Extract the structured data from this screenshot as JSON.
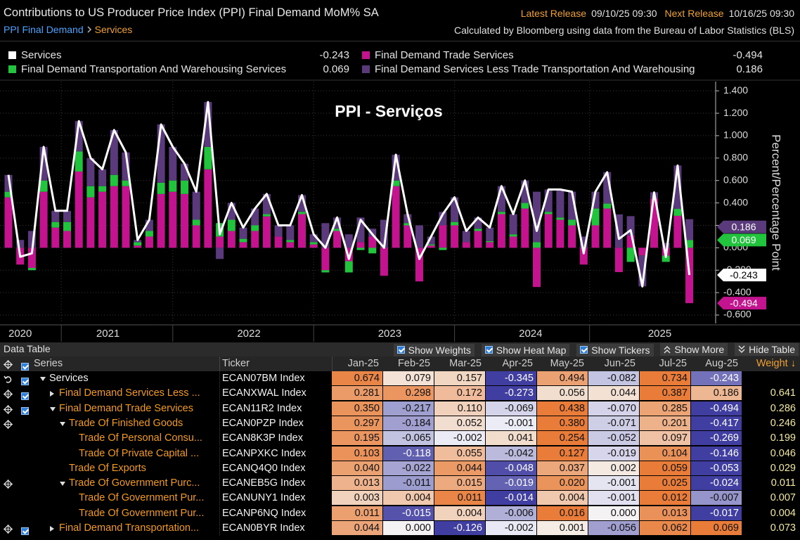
{
  "header": {
    "title": "Contributions to US Producer Price Index (PPI) Final Demand MoM% SA",
    "latest_release_label": "Latest Release",
    "latest_release": "09/10/25 09:30",
    "next_release_label": "Next Release",
    "next_release": "10/16/25 09:30",
    "breadcrumb": [
      "PPI Final Demand",
      "Services"
    ],
    "source": "Calculated by Bloomberg using data from the Bureau of Labor Statistics (BLS)"
  },
  "chart_data": {
    "type": "bar",
    "stacked": true,
    "title": "PPI - Serviços",
    "y_label": "Percent/Percentage Point",
    "grid": true,
    "ylim": [
      -0.675,
      1.47
    ],
    "yticks": [
      {
        "value": -0.6,
        "label": "-0.600"
      },
      {
        "value": -0.4,
        "label": "-0.400"
      },
      {
        "value": -0.2,
        "label": "-0.200"
      },
      {
        "value": 0,
        "label": "0.000"
      },
      {
        "value": 0.2,
        "label": "0.200"
      },
      {
        "value": 0.4,
        "label": "0.400"
      },
      {
        "value": 0.6,
        "label": "0.600"
      },
      {
        "value": 0.8,
        "label": "0.800"
      },
      {
        "value": 1,
        "label": "1.000"
      },
      {
        "value": 1.2,
        "label": "1.200"
      },
      {
        "value": 1.4,
        "label": "1.400"
      }
    ],
    "categories": [
      null,
      "2020",
      null,
      null,
      null,
      null,
      null,
      null,
      "2021",
      null,
      null,
      null,
      null,
      null,
      null,
      null,
      null,
      null,
      null,
      null,
      "2022",
      null,
      null,
      null,
      null,
      null,
      null,
      null,
      null,
      null,
      null,
      null,
      "2023",
      null,
      null,
      null,
      null,
      null,
      null,
      null,
      null,
      null,
      null,
      null,
      "2024",
      null,
      null,
      null,
      null,
      null,
      null,
      null,
      null,
      null,
      null,
      "2025",
      null,
      null,
      null
    ],
    "series": [
      {
        "name": "Services",
        "type": "line",
        "color": "#ffffff",
        "values": [
          0.65,
          -0.08,
          -0.05,
          0.9,
          0.33,
          0.33,
          1.13,
          0.8,
          0.7,
          1.05,
          0.85,
          0.07,
          0.25,
          1.1,
          0.9,
          0.75,
          0.5,
          1.3,
          0.12,
          0.4,
          0.18,
          0.35,
          0.48,
          0.2,
          0.2,
          0.47,
          0.12,
          0,
          0.27,
          -0.1,
          0.25,
          0.12,
          0,
          0.83,
          0.3,
          -0.1,
          0.1,
          0.3,
          0.45,
          0.15,
          0.27,
          0.18,
          0.55,
          0.3,
          0.6,
          0.15,
          0.52,
          0.52,
          0.5,
          -0.05,
          0.5,
          0.674,
          0.079,
          0.157,
          -0.345,
          0.494,
          -0.082,
          0.734,
          -0.243
        ]
      },
      {
        "name": "Final Demand Trade Services",
        "type": "bar",
        "color": "#c4138f",
        "values": [
          0.45,
          -0.15,
          -0.18,
          0.5,
          0.18,
          0.15,
          0.68,
          0.45,
          0.5,
          0.55,
          0.55,
          0.02,
          0.1,
          0.48,
          0.5,
          0.48,
          0.2,
          0.7,
          0.1,
          0.15,
          0.05,
          0.15,
          0.28,
          0.1,
          0.05,
          0.3,
          0.03,
          -0.2,
          0.15,
          -0.12,
          0.05,
          0.1,
          -0.25,
          0.55,
          0.2,
          -0.3,
          0.02,
          0.2,
          0.2,
          0.05,
          0.15,
          0.05,
          0.3,
          0.1,
          0.35,
          -0.35,
          0.3,
          0.25,
          0.2,
          -0.15,
          0.2,
          0.35,
          -0.217,
          0.11,
          -0.069,
          0.438,
          -0.07,
          0.285,
          -0.494
        ]
      },
      {
        "name": "Final Demand Transportation And Warehousing Services",
        "type": "bar",
        "color": "#22c43e",
        "values": [
          0.05,
          0,
          -0.02,
          0.1,
          0.05,
          0.08,
          0.18,
          0.1,
          0.05,
          0.1,
          0.05,
          0.03,
          0.05,
          0.1,
          0.1,
          0.12,
          0.05,
          0.2,
          0.12,
          0.1,
          0.03,
          0.05,
          0.02,
          0,
          0.02,
          0.02,
          0.02,
          -0.02,
          0.02,
          -0.1,
          -0.02,
          -0.05,
          0,
          0.05,
          0.02,
          0,
          0.01,
          -0.02,
          0.03,
          0,
          0.02,
          0.01,
          0.02,
          0.02,
          0.05,
          0.05,
          0.02,
          0.02,
          0.05,
          0,
          0.15,
          0.044,
          0,
          -0.126,
          -0.002,
          0.001,
          -0.056,
          0.062,
          0.069
        ]
      },
      {
        "name": "Final Demand Services Less Trade Transportation And Warehousing",
        "type": "bar",
        "color": "#5b3a7c",
        "values": [
          0.15,
          0.07,
          0.15,
          0.3,
          0.1,
          0.1,
          0.27,
          0.25,
          0.15,
          0.4,
          0.25,
          0.02,
          0.1,
          0.52,
          0.3,
          0.15,
          0.25,
          0.4,
          -0.1,
          0.15,
          0.1,
          0.15,
          0.18,
          0.1,
          0.13,
          0.15,
          0.07,
          0.22,
          0.1,
          0.12,
          0.22,
          0.07,
          0.25,
          0.23,
          0.08,
          0.2,
          0.07,
          0.12,
          0.22,
          0.1,
          0.1,
          0.12,
          0.23,
          0.18,
          0.2,
          0.45,
          0.2,
          0.25,
          0.25,
          0.1,
          0.15,
          0.281,
          0.298,
          0.172,
          -0.273,
          0.056,
          0.044,
          0.387,
          0.186
        ]
      }
    ]
  },
  "table": {
    "toolbar": {
      "title": "Data Table",
      "options": [
        "Show Weights",
        "Show Heat Map",
        "Show Tickers",
        "Show More",
        "Hide Table"
      ]
    },
    "columns": [
      "Series",
      "Ticker",
      "Jan-25",
      "Feb-25",
      "Mar-25",
      "Apr-25",
      "May-25",
      "Jun-25",
      "Jul-25",
      "Aug-25",
      "Weight ↓"
    ],
    "rows": [
      {
        "name": "Services",
        "ticker": "ECAN07BM Index",
        "values": [
          "0.674",
          "0.079",
          "0.157",
          "-0.345",
          "0.494",
          "-0.082",
          "0.734",
          "-0.243"
        ],
        "weight": null
      },
      {
        "name": "Final Demand Services Less ...",
        "ticker": "ECANXWAL Index",
        "values": [
          "0.281",
          "0.298",
          "0.172",
          "-0.273",
          "0.056",
          "0.044",
          "0.387",
          "0.186"
        ],
        "weight": "0.641"
      },
      {
        "name": "Final Demand Trade Services",
        "ticker": "ECAN11R2 Index",
        "values": [
          "0.350",
          "-0.217",
          "0.110",
          "-0.069",
          "0.438",
          "-0.070",
          "0.285",
          "-0.494"
        ],
        "weight": "0.286"
      },
      {
        "name": "Trade Of Finished Goods",
        "ticker": "ECAN0PZP Index",
        "values": [
          "0.297",
          "-0.184",
          "0.052",
          "-0.001",
          "0.380",
          "-0.071",
          "0.201",
          "-0.417"
        ],
        "weight": "0.246"
      },
      {
        "name": "Trade Of Personal Consu...",
        "ticker": "ECAN8K3P Index",
        "values": [
          "0.195",
          "-0.065",
          "-0.002",
          "0.041",
          "0.254",
          "-0.052",
          "0.097",
          "-0.269"
        ],
        "weight": "0.199"
      },
      {
        "name": "Trade Of Private Capital ...",
        "ticker": "ECANPXKC Index",
        "values": [
          "0.103",
          "-0.118",
          "0.055",
          "-0.042",
          "0.127",
          "-0.019",
          "0.104",
          "-0.146"
        ],
        "weight": "0.046"
      },
      {
        "name": "Trade Of Exports",
        "ticker": "ECANQ4Q0 Index",
        "values": [
          "0.040",
          "-0.022",
          "0.044",
          "-0.048",
          "0.037",
          "0.002",
          "0.059",
          "-0.053"
        ],
        "weight": "0.029"
      },
      {
        "name": "Trade Of Government Purc...",
        "ticker": "ECANEB5G Index",
        "values": [
          "0.013",
          "-0.011",
          "0.015",
          "-0.019",
          "0.020",
          "-0.001",
          "0.025",
          "-0.024"
        ],
        "weight": "0.011"
      },
      {
        "name": "Trade Of Government Pur...",
        "ticker": "ECANUNY1 Index",
        "values": [
          "0.003",
          "0.004",
          "0.011",
          "-0.014",
          "0.004",
          "-0.001",
          "0.012",
          "-0.007"
        ],
        "weight": "0.007"
      },
      {
        "name": "Trade Of Government Pur...",
        "ticker": "ECANP6NQ Index",
        "values": [
          "0.011",
          "-0.015",
          "0.004",
          "-0.006",
          "0.016",
          "0.000",
          "0.013",
          "-0.017"
        ],
        "weight": "0.004"
      },
      {
        "name": "Final Demand Transportation...",
        "ticker": "ECAN0BYR Index",
        "values": [
          "0.044",
          "0.000",
          "-0.126",
          "-0.002",
          "0.001",
          "-0.056",
          "0.062",
          "0.069"
        ],
        "weight": "0.073"
      }
    ]
  }
}
